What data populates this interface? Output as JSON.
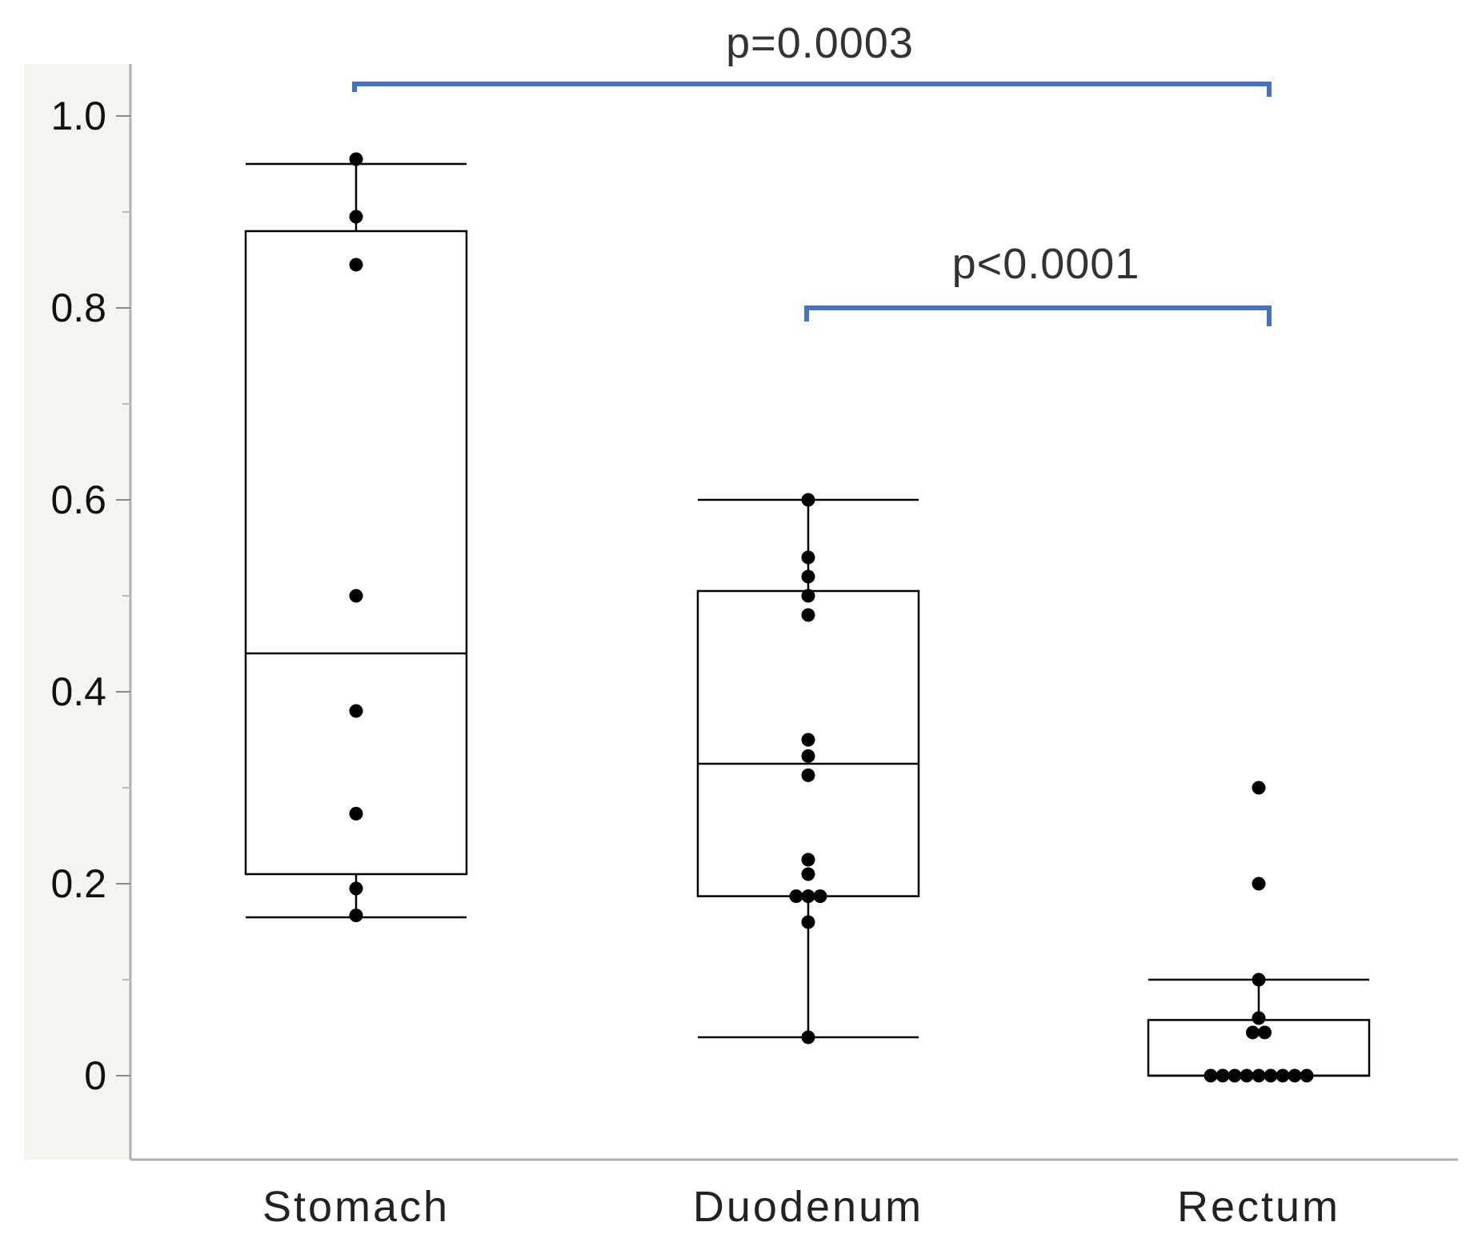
{
  "chart_data": {
    "type": "box",
    "title": "",
    "xlabel": "",
    "ylabel": "",
    "ylim": [
      -0.17,
      1.1
    ],
    "yticks": [
      0,
      0.2,
      0.4,
      0.6,
      0.8,
      1.0
    ],
    "ytick_labels": [
      "0",
      "0.2",
      "0.4",
      "0.6",
      "0.8",
      "1.0"
    ],
    "grid": false,
    "categories": [
      "Stomach",
      "Duodenum",
      "Rectum"
    ],
    "boxes": [
      {
        "category": "Stomach",
        "whisker_low": 0.165,
        "q1": 0.21,
        "median": 0.44,
        "q3": 0.88,
        "whisker_high": 0.95
      },
      {
        "category": "Duodenum",
        "whisker_low": 0.04,
        "q1": 0.187,
        "median": 0.325,
        "q3": 0.505,
        "whisker_high": 0.6
      },
      {
        "category": "Rectum",
        "whisker_low": 0.0,
        "q1": 0.0,
        "median": 0.0,
        "q3": 0.058,
        "whisker_high": 0.1
      }
    ],
    "points": [
      {
        "category": "Stomach",
        "values": [
          0.955,
          0.895,
          0.845,
          0.5,
          0.38,
          0.273,
          0.195,
          0.167
        ]
      },
      {
        "category": "Duodenum",
        "values": [
          0.6,
          0.54,
          0.52,
          0.5,
          0.48,
          0.35,
          0.333,
          0.313,
          0.225,
          0.21,
          0.187,
          0.187,
          0.187,
          0.16,
          0.04
        ]
      },
      {
        "category": "Rectum",
        "values": [
          0.3,
          0.2,
          0.1,
          0.06,
          0.045,
          0.045,
          0,
          0,
          0,
          0,
          0,
          0,
          0,
          0,
          0
        ]
      }
    ],
    "annotations": [
      {
        "label": "p=0.0003",
        "from": "Stomach",
        "to": "Rectum"
      },
      {
        "label": "p<0.0001",
        "from": "Duodenum",
        "to": "Rectum"
      }
    ],
    "colors": {
      "bracket": "#4472c4",
      "box": "#000000",
      "point": "#000000",
      "axis": "#b0b0b0",
      "axis_band": "#f5f5f0"
    }
  }
}
